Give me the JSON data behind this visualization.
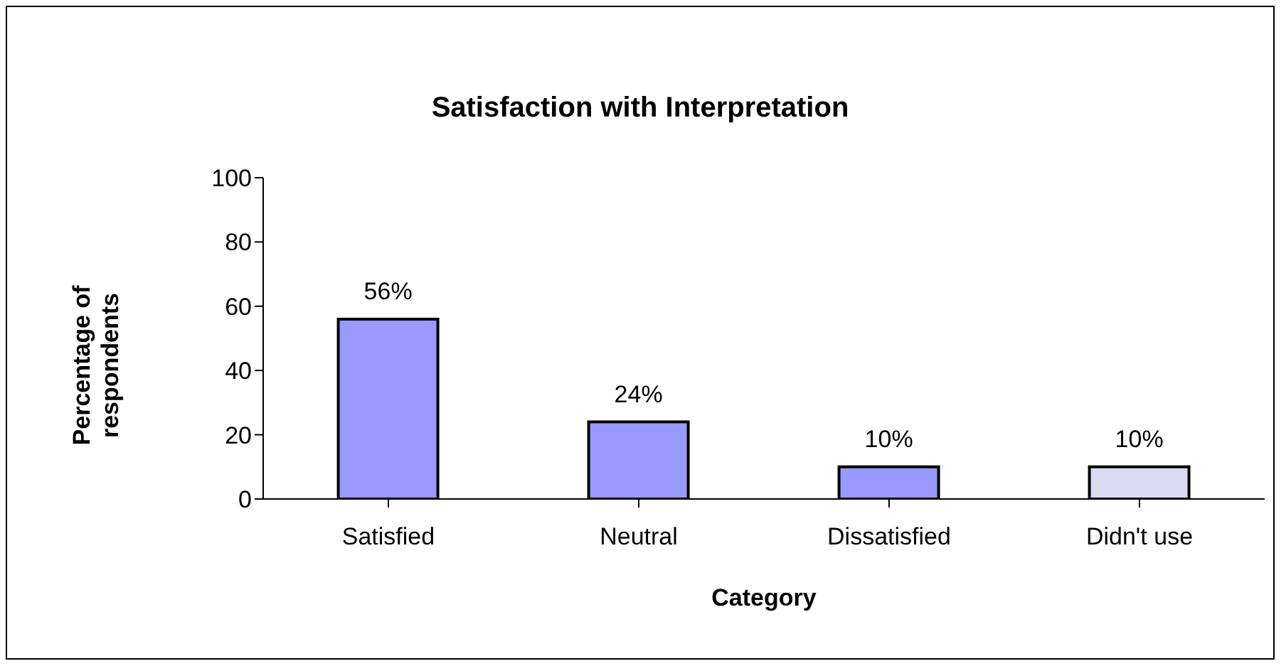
{
  "chart_data": {
    "type": "bar",
    "title": "Satisfaction with Interpretation",
    "xlabel": "Category",
    "ylabel": "Percentage of respondents",
    "categories": [
      "Satisfied",
      "Neutral",
      "Dissatisfied",
      "Didn't use"
    ],
    "values": [
      56,
      24,
      10,
      10
    ],
    "colors": [
      "#9999ff",
      "#9999ff",
      "#9999ff",
      "#d9d9f2"
    ],
    "value_labels": [
      "56%",
      "24%",
      "10%",
      "10%"
    ],
    "ylim": [
      0,
      100
    ],
    "yticks": [
      0,
      20,
      40,
      60,
      80,
      100
    ]
  }
}
